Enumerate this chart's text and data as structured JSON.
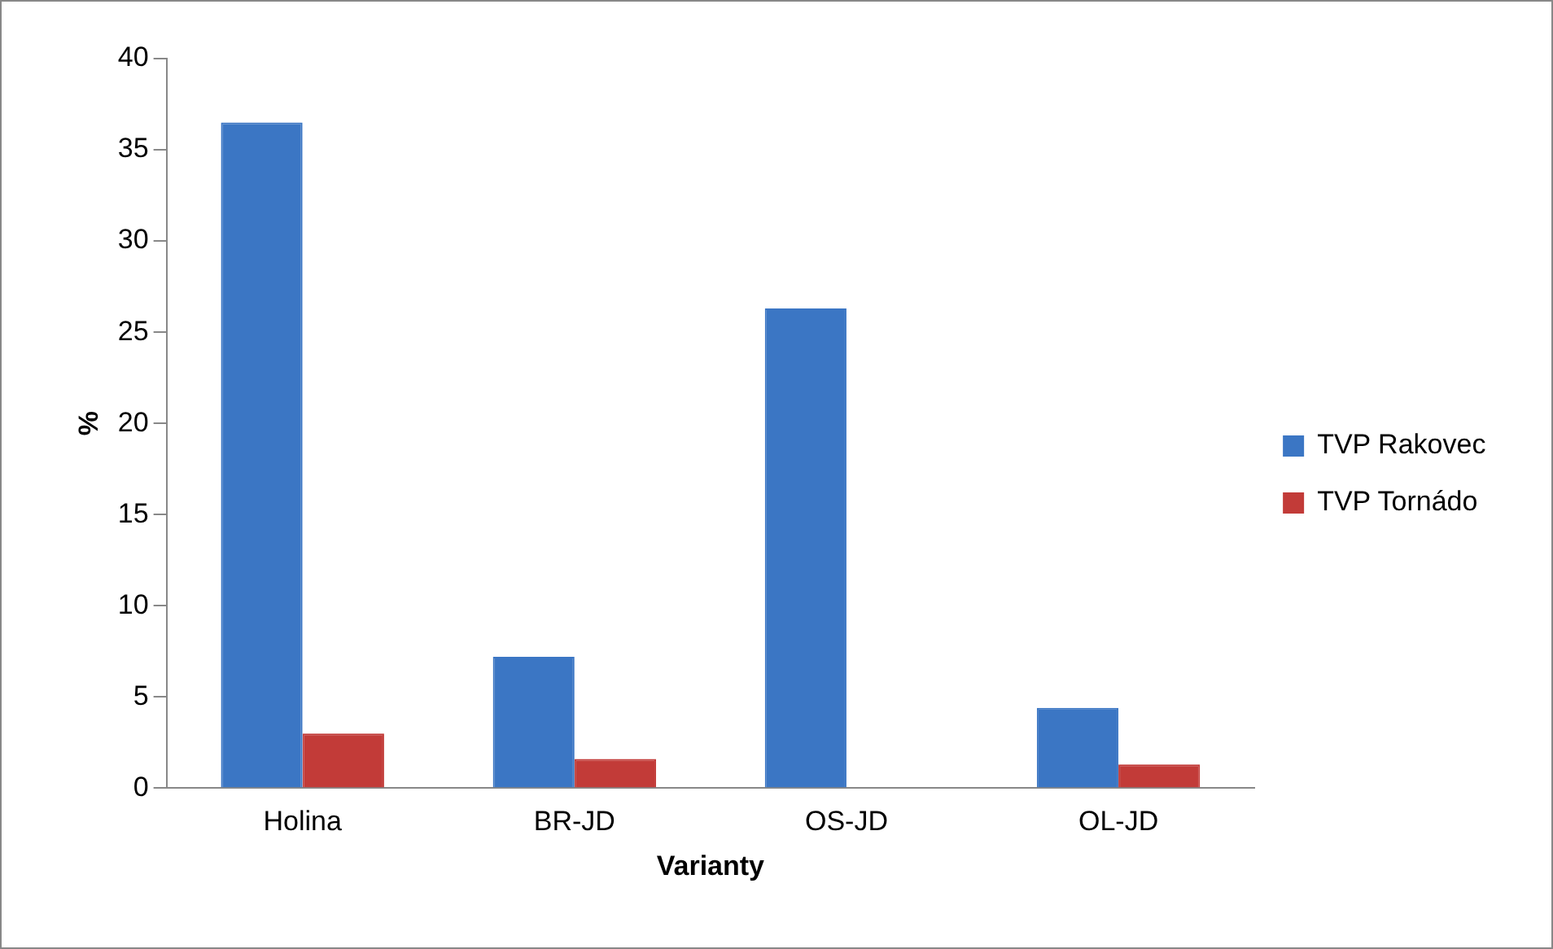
{
  "chart_data": {
    "type": "bar",
    "xlabel": "Varianty",
    "ylabel": "%",
    "categories": [
      "Holina",
      "BR-JD",
      "OS-JD",
      "OL-JD"
    ],
    "series": [
      {
        "name": "TVP Rakovec",
        "color": "#3b76c4",
        "values": [
          36.5,
          7.2,
          26.3,
          4.4
        ]
      },
      {
        "name": "TVP Tornádo",
        "color": "#c23b38",
        "values": [
          3.0,
          1.6,
          null,
          1.3
        ]
      }
    ],
    "ylim": [
      0,
      40
    ],
    "yticks": [
      0,
      5,
      10,
      15,
      20,
      25,
      30,
      35,
      40
    ],
    "grid": false,
    "legend": "right"
  }
}
